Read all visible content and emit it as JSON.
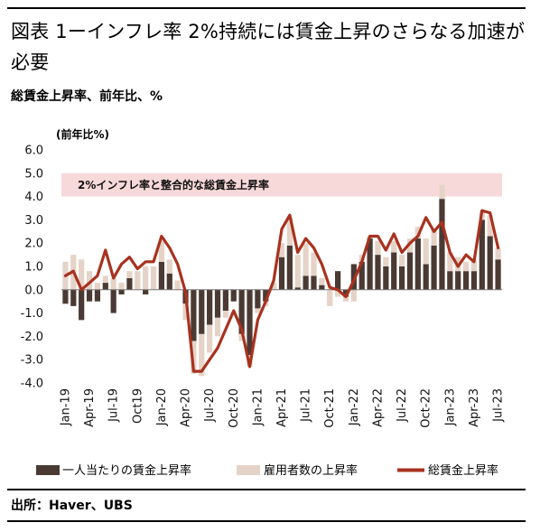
{
  "title": "図表 1ーインフレ率 2%持続には賃金上昇のさらなる加速が必要",
  "subtitle": "総賃金上昇率、前年比、%",
  "source": "出所：Haver、UBS",
  "colors": {
    "per_capita_bar": "#4a3a33",
    "employment_bar": "#e6d3c7",
    "total_line": "#a8321f",
    "band": "#f8d9d9"
  },
  "chart_data": {
    "type": "bar",
    "yaxis_label": "(前年比%)",
    "ylim": [
      -4.0,
      6.0
    ],
    "yticks": [
      "6.0",
      "5.0",
      "4.0",
      "3.0",
      "2.0",
      "1.0",
      "0.0",
      "-1.0",
      "-2.0",
      "-3.0",
      "-4.0"
    ],
    "band": {
      "from": 4.0,
      "to": 5.0,
      "label": "2%インフレ率と整合的な総賃金上昇率"
    },
    "x": [
      "Jan-19",
      "Feb-19",
      "Mar-19",
      "Apr-19",
      "May-19",
      "Jun-19",
      "Jul-19",
      "Aug-19",
      "Sep-19",
      "Oct-19",
      "Nov-19",
      "Dec-19",
      "Jan-20",
      "Feb-20",
      "Mar-20",
      "Apr-20",
      "May-20",
      "Jun-20",
      "Jul-20",
      "Aug-20",
      "Sep-20",
      "Oct-20",
      "Nov-20",
      "Dec-20",
      "Jan-21",
      "Feb-21",
      "Mar-21",
      "Apr-21",
      "May-21",
      "Jun-21",
      "Jul-21",
      "Aug-21",
      "Sep-21",
      "Oct-21",
      "Nov-21",
      "Dec-21",
      "Jan-22",
      "Feb-22",
      "Mar-22",
      "Apr-22",
      "May-22",
      "Jun-22",
      "Jul-22",
      "Aug-22",
      "Sep-22",
      "Oct-22",
      "Nov-22",
      "Dec-22",
      "Jan-23",
      "Feb-23",
      "Mar-23",
      "Apr-23",
      "May-23",
      "Jun-23",
      "Jul-23"
    ],
    "xtick_labels": [
      "Jan-19",
      "Apr-19",
      "Jul-19",
      "Oct19",
      "Jan-20",
      "Apr-20",
      "Jul-20",
      "Oct-20",
      "Jan-21",
      "Apr-21",
      "Jul-21",
      "Oct-21",
      "Jan-22",
      "Apr-22",
      "Jul-22",
      "Oct-22",
      "Jan-23",
      "Apr-23",
      "Jul-23"
    ],
    "legend_position": "bottom",
    "series": [
      {
        "name": "一人当たりの賃金上昇率",
        "kind": "bar",
        "values": [
          -0.6,
          -0.7,
          -1.3,
          -0.5,
          -0.5,
          0.3,
          -1.0,
          -0.2,
          0.5,
          0.0,
          -0.2,
          0.0,
          1.2,
          0.7,
          0.0,
          -0.6,
          -2.2,
          -1.9,
          -1.5,
          -1.2,
          -0.9,
          -0.5,
          -1.9,
          -2.8,
          -0.8,
          -0.5,
          0.0,
          1.4,
          1.9,
          0.1,
          0.6,
          0.6,
          0.2,
          0.0,
          0.8,
          -0.3,
          1.1,
          1.2,
          2.2,
          1.5,
          1.0,
          1.6,
          1.0,
          1.6,
          2.2,
          1.1,
          1.9,
          3.9,
          0.8,
          0.8,
          0.8,
          0.8,
          3.0,
          2.3,
          1.3
        ]
      },
      {
        "name": "雇用者数の上昇率",
        "kind": "bar",
        "values": [
          1.2,
          1.5,
          1.3,
          0.8,
          0.3,
          0.3,
          0.5,
          0.3,
          0.3,
          0.8,
          1.0,
          1.0,
          0.9,
          0.6,
          0.4,
          -0.7,
          -1.4,
          -1.8,
          -1.2,
          -0.8,
          -0.3,
          0.0,
          -0.3,
          -0.5,
          -0.2,
          -0.2,
          0.3,
          0.6,
          1.2,
          1.4,
          1.4,
          1.0,
          0.3,
          -0.7,
          -0.3,
          -0.2,
          -0.5,
          0.3,
          0.1,
          0.6,
          0.4,
          0.5,
          0.5,
          0.6,
          0.5,
          1.1,
          0.7,
          0.6,
          0.8,
          0.6,
          0.4,
          0.5,
          0.4,
          0.9,
          0.5
        ]
      },
      {
        "name": "総賃金上昇率",
        "kind": "line",
        "values": [
          0.6,
          0.8,
          0.0,
          0.3,
          0.6,
          1.7,
          0.5,
          1.1,
          1.4,
          0.9,
          1.2,
          1.2,
          2.3,
          1.8,
          1.1,
          -0.1,
          -3.5,
          -3.5,
          -3.0,
          -2.5,
          -1.7,
          -0.9,
          -1.7,
          -3.3,
          -1.3,
          -0.5,
          0.4,
          2.6,
          3.2,
          1.6,
          2.2,
          1.8,
          1.1,
          0.1,
          0.0,
          -0.3,
          0.4,
          1.2,
          2.3,
          2.3,
          1.7,
          2.4,
          1.6,
          2.0,
          2.3,
          3.1,
          2.5,
          2.9,
          1.6,
          1.0,
          1.5,
          1.2,
          3.4,
          3.3,
          1.8
        ]
      }
    ]
  }
}
